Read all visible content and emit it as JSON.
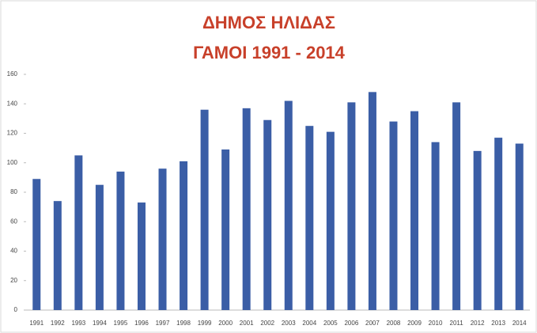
{
  "chart_data": {
    "type": "bar",
    "title": "ΔΗΜΟΣ ΗΛΙΔΑΣ",
    "subtitle": "ΓΑΜΟΙ 1991 - 2014",
    "categories": [
      "1991",
      "1992",
      "1993",
      "1994",
      "1995",
      "1996",
      "1997",
      "1998",
      "1999",
      "2000",
      "2001",
      "2002",
      "2003",
      "2004",
      "2005",
      "2006",
      "2007",
      "2008",
      "2009",
      "2010",
      "2011",
      "2012",
      "2013",
      "2014"
    ],
    "values": [
      89,
      74,
      105,
      85,
      94,
      73,
      96,
      101,
      136,
      109,
      137,
      129,
      142,
      125,
      121,
      141,
      148,
      128,
      135,
      114,
      141,
      108,
      117,
      113
    ],
    "color": "#3b5ea6",
    "ylim": [
      0,
      160
    ],
    "yticks": [
      0,
      20,
      40,
      60,
      80,
      100,
      120,
      140,
      160
    ],
    "grid": false
  }
}
